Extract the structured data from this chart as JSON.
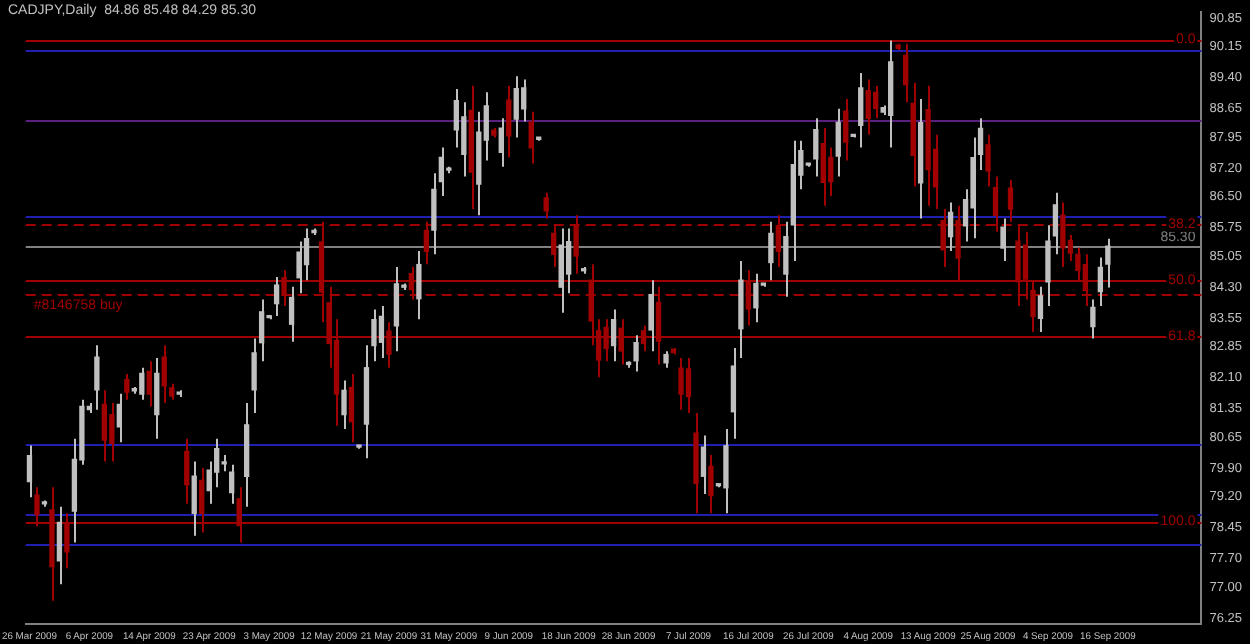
{
  "chart_data": {
    "type": "candlestick",
    "title": "CADJPY,Daily  84.86 85.48 84.29 85.30",
    "categories": [
      "26 Mar 2009",
      null,
      null,
      null,
      null,
      null,
      null,
      null,
      "6 Apr 2009",
      null,
      null,
      null,
      null,
      null,
      null,
      null,
      "14 Apr 2009",
      null,
      null,
      null,
      null,
      null,
      null,
      null,
      "23 Apr 2009",
      null,
      null,
      null,
      null,
      null,
      null,
      null,
      "3 May 2009",
      null,
      null,
      null,
      null,
      null,
      null,
      null,
      "12 May 2009",
      null,
      null,
      null,
      null,
      null,
      null,
      null,
      "21 May 2009",
      null,
      null,
      null,
      null,
      null,
      null,
      null,
      "31 May 2009",
      null,
      null,
      null,
      null,
      null,
      null,
      null,
      "9 Jun 2009",
      null,
      null,
      null,
      null,
      null,
      null,
      null,
      "18 Jun 2009",
      null,
      null,
      null,
      null,
      null,
      null,
      null,
      "28 Jun 2009",
      null,
      null,
      null,
      null,
      null,
      null,
      null,
      "7 Jul 2009",
      null,
      null,
      null,
      null,
      null,
      null,
      null,
      "16 Jul 2009",
      null,
      null,
      null,
      null,
      null,
      null,
      null,
      "26 Jul 2009",
      null,
      null,
      null,
      null,
      null,
      null,
      null,
      "4 Aug 2009",
      null,
      null,
      null,
      null,
      null,
      null,
      null,
      "13 Aug 2009",
      null,
      null,
      null,
      null,
      null,
      null,
      null,
      "25 Aug 2009",
      null,
      null,
      null,
      null,
      null,
      null,
      null,
      "4 Sep 2009",
      null,
      null,
      null,
      null,
      null,
      null,
      null,
      "16 Sep 2009",
      null,
      null,
      null,
      null,
      null,
      null,
      null,
      null,
      null,
      null,
      null,
      null
    ],
    "ohlc": [
      [
        79.57,
        80.45,
        79.19,
        80.2
      ],
      [
        79.24,
        79.43,
        78.48,
        78.77
      ],
      [
        79.03,
        79.11,
        78.96,
        79.05
      ],
      [
        78.88,
        79.43,
        76.67,
        77.5
      ],
      [
        77.64,
        78.96,
        77.07,
        78.58
      ],
      [
        78.53,
        78.8,
        77.46,
        77.86
      ],
      [
        78.85,
        80.61,
        78.09,
        80.11
      ],
      [
        80.1,
        81.56,
        79.98,
        81.4
      ],
      [
        81.32,
        81.48,
        81.24,
        81.4
      ],
      [
        81.8,
        82.89,
        81.32,
        82.6
      ],
      [
        81.45,
        81.79,
        80.06,
        80.58
      ],
      [
        81.2,
        81.48,
        80.06,
        80.5
      ],
      [
        80.9,
        81.71,
        80.53,
        81.45
      ],
      [
        82.05,
        82.19,
        81.56,
        81.75
      ],
      [
        81.78,
        81.87,
        81.71,
        81.8
      ],
      [
        81.7,
        82.34,
        81.56,
        82.2
      ],
      [
        82.25,
        82.5,
        81.4,
        81.7
      ],
      [
        81.2,
        82.58,
        80.61,
        82.2
      ],
      [
        82.6,
        82.89,
        81.48,
        81.9
      ],
      [
        81.85,
        81.95,
        81.56,
        81.65
      ],
      [
        81.7,
        81.79,
        81.63,
        81.72
      ],
      [
        80.3,
        80.61,
        79.03,
        79.5
      ],
      [
        78.8,
        80.06,
        78.25,
        79.7
      ],
      [
        79.6,
        79.9,
        78.33,
        78.8
      ],
      [
        79.35,
        80.06,
        79.03,
        79.85
      ],
      [
        79.8,
        80.61,
        79.43,
        80.37
      ],
      [
        80,
        80.22,
        79.82,
        80.02
      ],
      [
        79.3,
        79.98,
        79.03,
        79.8
      ],
      [
        79.15,
        79.43,
        78.09,
        78.5
      ],
      [
        79.7,
        81.48,
        78.96,
        80.95
      ],
      [
        81.8,
        83.05,
        81.24,
        82.7
      ],
      [
        82.95,
        84,
        82.5,
        83.7
      ],
      [
        83.56,
        83.6,
        83.52,
        83.57
      ],
      [
        83.9,
        84.55,
        83.6,
        84.35
      ],
      [
        84.53,
        84.71,
        83.84,
        84.1
      ],
      [
        83.4,
        84.31,
        82.97,
        84.05
      ],
      [
        84.53,
        85.41,
        84.15,
        85.15
      ],
      [
        84.85,
        85.73,
        84.47,
        85.48
      ],
      [
        85.63,
        85.73,
        85.57,
        85.66
      ],
      [
        85.4,
        85.89,
        83.45,
        84.18
      ],
      [
        83.92,
        84.31,
        82.34,
        82.93
      ],
      [
        83,
        83.52,
        80.93,
        81.7
      ],
      [
        81.2,
        82.03,
        80.85,
        81.79
      ],
      [
        81.86,
        82.19,
        80.53,
        81.03
      ],
      [
        80.41,
        80.45,
        80.37,
        80.42
      ],
      [
        80.97,
        82.89,
        80.14,
        82.34
      ],
      [
        82.88,
        83.76,
        82.5,
        83.51
      ],
      [
        82.96,
        83.84,
        82.58,
        83.59
      ],
      [
        83.23,
        83.45,
        82.34,
        82.67
      ],
      [
        83.36,
        84.79,
        82.74,
        84.38
      ],
      [
        84.3,
        84.39,
        84.23,
        84.32
      ],
      [
        84.63,
        84.79,
        84,
        84.24
      ],
      [
        84.02,
        85.18,
        83.52,
        84.85
      ],
      [
        85.68,
        85.89,
        84.86,
        85.17
      ],
      [
        85.69,
        87.07,
        85.1,
        86.68
      ],
      [
        86.87,
        87.7,
        86.52,
        87.46
      ],
      [
        87.15,
        87.23,
        87.07,
        87.16
      ],
      [
        88.13,
        89.12,
        87.7,
        88.84
      ],
      [
        87.53,
        88.8,
        86.99,
        88.44
      ],
      [
        88.6,
        89.2,
        86.2,
        87.1
      ],
      [
        86.81,
        88.57,
        86.05,
        88.07
      ],
      [
        87.88,
        89.04,
        87.38,
        88.71
      ],
      [
        88.12,
        88.17,
        87.94,
        88
      ],
      [
        87.58,
        88.41,
        87.23,
        88.17
      ],
      [
        88.85,
        89.2,
        87.46,
        87.98
      ],
      [
        88.39,
        89.43,
        87.94,
        89.13
      ],
      [
        88.64,
        89.35,
        88.33,
        89.15
      ],
      [
        88.32,
        88.57,
        87.31,
        87.69
      ],
      [
        87.9,
        87.94,
        87.86,
        87.91
      ],
      [
        86.47,
        86.6,
        85.97,
        86.16
      ],
      [
        85.61,
        85.81,
        84.79,
        85.1
      ],
      [
        84.3,
        85.73,
        83.68,
        85.32
      ],
      [
        84.62,
        85.73,
        84.15,
        85.41
      ],
      [
        85.77,
        86.05,
        84.63,
        85.06
      ],
      [
        84.7,
        84.79,
        84.63,
        84.72
      ],
      [
        84.47,
        84.86,
        82.89,
        83.48
      ],
      [
        83.24,
        83.52,
        82.11,
        82.53
      ],
      [
        83.32,
        83.52,
        82.5,
        82.81
      ],
      [
        82.88,
        83.76,
        82.5,
        83.51
      ],
      [
        83.3,
        83.52,
        82.42,
        82.75
      ],
      [
        82.42,
        82.5,
        82.34,
        82.43
      ],
      [
        82.51,
        83.13,
        82.25,
        82.95
      ],
      [
        83.24,
        83.37,
        82.74,
        82.93
      ],
      [
        83.26,
        84.47,
        82.74,
        84.12
      ],
      [
        83.93,
        84.31,
        82.42,
        82.99
      ],
      [
        82.46,
        82.74,
        82.34,
        82.66
      ],
      [
        82.79,
        82.82,
        82.66,
        82.71
      ],
      [
        82.33,
        82.58,
        81.32,
        81.7
      ],
      [
        82.31,
        82.58,
        81.24,
        81.64
      ],
      [
        80.75,
        81.24,
        78.8,
        79.53
      ],
      [
        79.7,
        80.69,
        79.27,
        80.41
      ],
      [
        79.94,
        80.22,
        78.8,
        79.23
      ],
      [
        79.47,
        79.51,
        79.43,
        79.48
      ],
      [
        79.42,
        80.85,
        78.8,
        80.44
      ],
      [
        81.27,
        82.82,
        80.61,
        82.38
      ],
      [
        83.29,
        84.94,
        82.58,
        84.47
      ],
      [
        84.44,
        84.71,
        83.37,
        83.77
      ],
      [
        83.8,
        84.63,
        83.45,
        84.39
      ],
      [
        84.35,
        84.39,
        84.31,
        84.36
      ],
      [
        84.9,
        85.89,
        84.47,
        85.61
      ],
      [
        85.8,
        86.05,
        84.79,
        85.17
      ],
      [
        84.62,
        85.89,
        84.07,
        85.53
      ],
      [
        85.82,
        87.86,
        84.94,
        87.28
      ],
      [
        87.03,
        87.86,
        86.68,
        87.62
      ],
      [
        87.27,
        87.31,
        87.23,
        87.28
      ],
      [
        87.42,
        88.41,
        86.99,
        88.13
      ],
      [
        87.79,
        88.17,
        86.28,
        86.85
      ],
      [
        87.46,
        87.7,
        86.52,
        86.87
      ],
      [
        87.49,
        88.64,
        86.99,
        88.31
      ],
      [
        88.58,
        88.88,
        87.38,
        87.83
      ],
      [
        87.97,
        88.01,
        87.94,
        87.98
      ],
      [
        88.24,
        89.51,
        87.7,
        89.15
      ],
      [
        89.08,
        89.35,
        88.01,
        88.41
      ],
      [
        89.04,
        89.2,
        88.41,
        88.65
      ],
      [
        88.56,
        88.72,
        88.49,
        88.67
      ],
      [
        88.48,
        90.3,
        87.7,
        89.78
      ],
      [
        90.19,
        90.22,
        90.07,
        90.11
      ],
      [
        89.94,
        90.22,
        88.8,
        89.23
      ],
      [
        88.77,
        89.27,
        86.75,
        87.51
      ],
      [
        86.84,
        88.88,
        85.97,
        88.3
      ],
      [
        88.62,
        89.2,
        86.28,
        87.16
      ],
      [
        87.65,
        88.01,
        86.2,
        86.74
      ],
      [
        85.92,
        86.2,
        84.79,
        85.21
      ],
      [
        85.53,
        86.36,
        85.18,
        86.12
      ],
      [
        85.92,
        86.28,
        84.47,
        85.01
      ],
      [
        85.79,
        86.68,
        85.41,
        86.43
      ],
      [
        86.23,
        87.94,
        85.49,
        87.45
      ],
      [
        87.53,
        88.41,
        87.15,
        88.16
      ],
      [
        87.76,
        88.01,
        86.75,
        87.13
      ],
      [
        86.72,
        86.99,
        85.65,
        86.05
      ],
      [
        85.25,
        85.97,
        84.94,
        85.76
      ],
      [
        86.71,
        86.91,
        85.89,
        86.2
      ],
      [
        85.42,
        85.81,
        83.84,
        84.43
      ],
      [
        85.32,
        85.65,
        84,
        84.5
      ],
      [
        84.22,
        84.47,
        83.21,
        83.59
      ],
      [
        83.54,
        84.31,
        83.21,
        84.09
      ],
      [
        84.43,
        85.81,
        83.84,
        85.42
      ],
      [
        85.55,
        86.6,
        85.1,
        86.3
      ],
      [
        86.05,
        86.36,
        84.79,
        85.26
      ],
      [
        85.44,
        85.57,
        84.94,
        85.13
      ],
      [
        85.1,
        85.26,
        84.47,
        84.71
      ],
      [
        84.85,
        85.1,
        83.84,
        84.22
      ],
      [
        83.34,
        84,
        83.05,
        83.81
      ],
      [
        84.19,
        85.02,
        83.84,
        84.78
      ],
      [
        84.86,
        85.48,
        84.29,
        85.3
      ],
      null,
      null,
      null,
      null,
      null,
      null,
      null,
      null,
      null,
      null,
      null,
      null
    ],
    "colors": [
      "#c0c0c0",
      "#a00000",
      "#c0c0c0",
      "#a00000",
      "#c0c0c0",
      "#a00000",
      "#c0c0c0",
      "#c0c0c0",
      "#c0c0c0",
      "#c0c0c0",
      "#a00000",
      "#a00000",
      "#c0c0c0",
      "#a00000",
      "#c0c0c0",
      "#c0c0c0",
      "#a00000",
      "#c0c0c0",
      "#a00000",
      "#a00000",
      "#c0c0c0",
      "#a00000",
      "#c0c0c0",
      "#a00000",
      "#c0c0c0",
      "#c0c0c0",
      "#c0c0c0",
      "#c0c0c0",
      "#a00000",
      "#c0c0c0",
      "#c0c0c0",
      "#c0c0c0",
      "#c0c0c0",
      "#c0c0c0",
      "#a00000",
      "#c0c0c0",
      "#c0c0c0",
      "#c0c0c0",
      "#c0c0c0",
      "#a00000",
      "#a00000",
      "#a00000",
      "#c0c0c0",
      "#a00000",
      "#c0c0c0",
      "#c0c0c0",
      "#c0c0c0",
      "#c0c0c0",
      "#a00000",
      "#c0c0c0",
      "#c0c0c0",
      "#a00000",
      "#c0c0c0",
      "#a00000",
      "#c0c0c0",
      "#c0c0c0",
      "#c0c0c0",
      "#c0c0c0",
      "#c0c0c0",
      "#a00000",
      "#c0c0c0",
      "#c0c0c0",
      "#a00000",
      "#c0c0c0",
      "#a00000",
      "#c0c0c0",
      "#c0c0c0",
      "#a00000",
      "#c0c0c0",
      "#a00000",
      "#a00000",
      "#c0c0c0",
      "#c0c0c0",
      "#a00000",
      "#c0c0c0",
      "#a00000",
      "#a00000",
      "#a00000",
      "#c0c0c0",
      "#a00000",
      "#c0c0c0",
      "#c0c0c0",
      "#a00000",
      "#c0c0c0",
      "#a00000",
      "#c0c0c0",
      "#a00000",
      "#a00000",
      "#a00000",
      "#a00000",
      "#c0c0c0",
      "#a00000",
      "#c0c0c0",
      "#c0c0c0",
      "#c0c0c0",
      "#c0c0c0",
      "#a00000",
      "#c0c0c0",
      "#c0c0c0",
      "#c0c0c0",
      "#a00000",
      "#c0c0c0",
      "#c0c0c0",
      "#c0c0c0",
      "#c0c0c0",
      "#c0c0c0",
      "#a00000",
      "#a00000",
      "#c0c0c0",
      "#a00000",
      "#c0c0c0",
      "#c0c0c0",
      "#a00000",
      "#a00000",
      "#c0c0c0",
      "#c0c0c0",
      "#a00000",
      "#a00000",
      "#a00000",
      "#c0c0c0",
      "#a00000",
      "#a00000",
      "#a00000",
      "#c0c0c0",
      "#a00000",
      "#c0c0c0",
      "#c0c0c0",
      "#c0c0c0",
      "#a00000",
      "#a00000",
      "#c0c0c0",
      "#a00000",
      "#a00000",
      "#a00000",
      "#a00000",
      "#c0c0c0",
      "#c0c0c0",
      "#c0c0c0",
      "#a00000",
      "#a00000",
      "#a00000",
      "#a00000",
      "#c0c0c0",
      "#c0c0c0",
      "#c0c0c0",
      null,
      null,
      null,
      null,
      null,
      null,
      null,
      null,
      null,
      null,
      null,
      null
    ],
    "ylim": [
      76.1,
      91.0
    ],
    "yticks": [
      90.85,
      90.15,
      {
        "value": 89.4,
        "label": "89.40"
      },
      88.65,
      87.95,
      {
        "value": 87.2,
        "label": "87.20"
      },
      {
        "value": 86.5,
        "label": "86.50"
      },
      85.75,
      85.05,
      {
        "value": 84.3,
        "label": "84.30"
      },
      83.55,
      82.85,
      {
        "value": 82.1,
        "label": "82.10"
      },
      81.35,
      80.65,
      {
        "value": 79.9,
        "label": "79.90"
      },
      {
        "value": 79.2,
        "label": "79.20"
      },
      78.45,
      {
        "value": 77.7,
        "label": "77.70"
      },
      {
        "value": 77,
        "label": "77.00"
      },
      76.25
    ],
    "ref_lines": [
      {
        "axis": "y",
        "value": 90.05,
        "color": "#2020b0"
      },
      {
        "axis": "y",
        "value": 86.03,
        "color": "#2020b0"
      },
      {
        "axis": "y",
        "value": 80.5,
        "color": "#2020b0"
      },
      {
        "axis": "y",
        "value": 78.8,
        "color": "#2020b0"
      },
      {
        "axis": "y",
        "value": 78.04,
        "color": "#2020b0"
      },
      {
        "axis": "y",
        "value": 88.39,
        "color": "#5a2080"
      },
      {
        "axis": "y",
        "value": 90.33,
        "color": "#a00000"
      },
      {
        "axis": "y",
        "value": 85.84,
        "color": "#a00000",
        "line_style": "dashed"
      },
      {
        "axis": "y",
        "value": 84.47,
        "color": "#a00000"
      },
      {
        "axis": "y",
        "value": 83.1,
        "color": "#a00000"
      },
      {
        "axis": "y",
        "value": 78.61,
        "color": "#a00000"
      },
      {
        "axis": "y",
        "value": 84.14,
        "label": "#8146758 buy",
        "color": "#a00000",
        "line_style": "dashed"
      },
      {
        "axis": "y",
        "value": 85.3,
        "label": "85.30",
        "color": "#808080"
      }
    ],
    "annotations": [
      {
        "text": "0.0",
        "y": 90.33
      },
      {
        "text": "38.2",
        "y": 85.84
      },
      {
        "text": "50.0",
        "y": 84.47
      },
      {
        "text": "61.8",
        "y": 83.1
      },
      {
        "text": "100.0",
        "y": 78.61
      }
    ]
  }
}
